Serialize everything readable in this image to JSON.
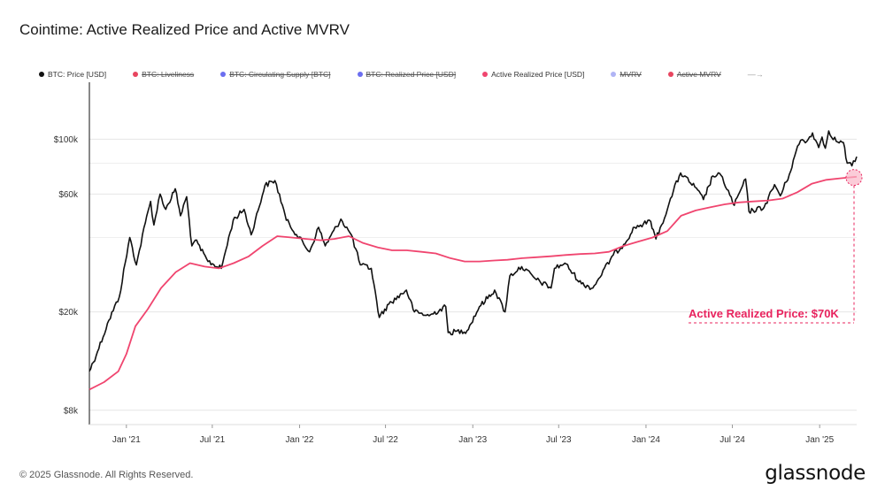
{
  "page": {
    "title": "Cointime: Active Realized Price and Active MVRV",
    "copyright": "© 2025 Glassnode. All Rights Reserved.",
    "logo_text": "glassnode"
  },
  "legend": [
    {
      "label": "BTC: Price [USD]",
      "color": "#111111",
      "enabled": true
    },
    {
      "label": "BTC: Liveliness",
      "color": "#e8455f",
      "enabled": false
    },
    {
      "label": "BTC: Circulating Supply [BTC]",
      "color": "#6b6ef0",
      "enabled": false
    },
    {
      "label": "BTC: Realized Price [USD]",
      "color": "#6b6ef0",
      "enabled": false
    },
    {
      "label": "Active Realized Price [USD]",
      "color": "#f0456f",
      "enabled": true
    },
    {
      "label": "MVRV",
      "color": "#b0b4f5",
      "enabled": false
    },
    {
      "label": "Active MVRV",
      "color": "#e8455f",
      "enabled": false
    }
  ],
  "legend_more": "—→",
  "chart_data": {
    "type": "line",
    "yscale": "log",
    "ylim": [
      7000,
      170000
    ],
    "xlim": [
      "2020-10-15",
      "2025-03-20"
    ],
    "y_ticks": [
      {
        "value": 8000,
        "label": "$8k"
      },
      {
        "value": 20000,
        "label": "$20k"
      },
      {
        "value": 60000,
        "label": "$60k"
      },
      {
        "value": 100000,
        "label": "$100k"
      }
    ],
    "x_ticks": [
      {
        "date": "2021-01-01",
        "label": "Jan '21"
      },
      {
        "date": "2021-07-01",
        "label": "Jul '21"
      },
      {
        "date": "2022-01-01",
        "label": "Jan '22"
      },
      {
        "date": "2022-07-01",
        "label": "Jul '22"
      },
      {
        "date": "2023-01-01",
        "label": "Jan '23"
      },
      {
        "date": "2023-07-01",
        "label": "Jul '23"
      },
      {
        "date": "2024-01-01",
        "label": "Jan '24"
      },
      {
        "date": "2024-07-01",
        "label": "Jul '24"
      },
      {
        "date": "2025-01-01",
        "label": "Jan '25"
      }
    ],
    "grid": "horizontal",
    "series": [
      {
        "name": "BTC: Price [USD]",
        "color": "#111111",
        "points": [
          [
            "2020-10-15",
            11500
          ],
          [
            "2020-11-01",
            13800
          ],
          [
            "2020-11-25",
            18500
          ],
          [
            "2020-12-17",
            23000
          ],
          [
            "2021-01-08",
            40000
          ],
          [
            "2021-01-22",
            31000
          ],
          [
            "2021-02-10",
            46000
          ],
          [
            "2021-02-21",
            56000
          ],
          [
            "2021-02-28",
            45000
          ],
          [
            "2021-03-13",
            60000
          ],
          [
            "2021-03-25",
            52000
          ],
          [
            "2021-04-14",
            63000
          ],
          [
            "2021-04-25",
            49000
          ],
          [
            "2021-05-08",
            58500
          ],
          [
            "2021-05-19",
            37000
          ],
          [
            "2021-05-26",
            39000
          ],
          [
            "2021-06-22",
            32000
          ],
          [
            "2021-07-20",
            30000
          ],
          [
            "2021-08-14",
            47000
          ],
          [
            "2021-09-06",
            52000
          ],
          [
            "2021-09-21",
            41000
          ],
          [
            "2021-10-20",
            65000
          ],
          [
            "2021-11-10",
            68000
          ],
          [
            "2021-11-26",
            54000
          ],
          [
            "2021-12-04",
            47000
          ],
          [
            "2022-01-22",
            35000
          ],
          [
            "2022-02-10",
            44000
          ],
          [
            "2022-02-24",
            37000
          ],
          [
            "2022-03-29",
            47500
          ],
          [
            "2022-04-20",
            41000
          ],
          [
            "2022-05-09",
            31000
          ],
          [
            "2022-06-01",
            30000
          ],
          [
            "2022-06-18",
            19000
          ],
          [
            "2022-07-08",
            21500
          ],
          [
            "2022-08-14",
            24500
          ],
          [
            "2022-08-31",
            20000
          ],
          [
            "2022-10-01",
            19300
          ],
          [
            "2022-11-05",
            21000
          ],
          [
            "2022-11-10",
            16500
          ],
          [
            "2022-12-20",
            16800
          ],
          [
            "2023-01-15",
            21000
          ],
          [
            "2023-02-16",
            24500
          ],
          [
            "2023-03-10",
            20000
          ],
          [
            "2023-03-20",
            28000
          ],
          [
            "2023-04-14",
            30500
          ],
          [
            "2023-05-15",
            27000
          ],
          [
            "2023-06-15",
            25000
          ],
          [
            "2023-06-22",
            30000
          ],
          [
            "2023-07-14",
            31500
          ],
          [
            "2023-08-18",
            26000
          ],
          [
            "2023-09-11",
            25000
          ],
          [
            "2023-10-24",
            34000
          ],
          [
            "2023-11-15",
            37500
          ],
          [
            "2023-12-08",
            44000
          ],
          [
            "2024-01-11",
            46500
          ],
          [
            "2024-01-22",
            39500
          ],
          [
            "2024-02-15",
            52000
          ],
          [
            "2024-02-28",
            62000
          ],
          [
            "2024-03-14",
            73000
          ],
          [
            "2024-04-13",
            64000
          ],
          [
            "2024-05-01",
            57000
          ],
          [
            "2024-05-21",
            71000
          ],
          [
            "2024-06-07",
            71500
          ],
          [
            "2024-07-05",
            54000
          ],
          [
            "2024-07-29",
            69000
          ],
          [
            "2024-08-05",
            51000
          ],
          [
            "2024-09-06",
            53000
          ],
          [
            "2024-09-28",
            65500
          ],
          [
            "2024-10-10",
            59000
          ],
          [
            "2024-10-29",
            72000
          ],
          [
            "2024-11-12",
            89000
          ],
          [
            "2024-11-22",
            99000
          ],
          [
            "2024-12-05",
            98000
          ],
          [
            "2024-12-17",
            106000
          ],
          [
            "2024-12-30",
            92500
          ],
          [
            "2025-01-06",
            102000
          ],
          [
            "2025-01-13",
            92000
          ],
          [
            "2025-01-20",
            108000
          ],
          [
            "2025-02-05",
            98000
          ],
          [
            "2025-02-20",
            97000
          ],
          [
            "2025-02-28",
            80000
          ],
          [
            "2025-03-10",
            78000
          ],
          [
            "2025-03-20",
            85000
          ]
        ]
      },
      {
        "name": "Active Realized Price [USD]",
        "color": "#f0456f",
        "points": [
          [
            "2020-10-15",
            9700
          ],
          [
            "2020-11-15",
            10400
          ],
          [
            "2020-12-15",
            11500
          ],
          [
            "2021-01-01",
            13500
          ],
          [
            "2021-01-20",
            17500
          ],
          [
            "2021-02-15",
            20500
          ],
          [
            "2021-03-15",
            25000
          ],
          [
            "2021-04-15",
            29000
          ],
          [
            "2021-05-15",
            31500
          ],
          [
            "2021-06-15",
            30500
          ],
          [
            "2021-07-15",
            30000
          ],
          [
            "2021-08-15",
            31500
          ],
          [
            "2021-09-15",
            33500
          ],
          [
            "2021-10-15",
            37000
          ],
          [
            "2021-11-15",
            40500
          ],
          [
            "2021-12-15",
            40000
          ],
          [
            "2022-01-15",
            39500
          ],
          [
            "2022-02-15",
            39000
          ],
          [
            "2022-03-15",
            39500
          ],
          [
            "2022-04-15",
            40500
          ],
          [
            "2022-05-15",
            38000
          ],
          [
            "2022-06-15",
            36500
          ],
          [
            "2022-07-15",
            35500
          ],
          [
            "2022-08-15",
            35500
          ],
          [
            "2022-09-15",
            35000
          ],
          [
            "2022-10-15",
            34500
          ],
          [
            "2022-11-15",
            33000
          ],
          [
            "2022-12-15",
            32000
          ],
          [
            "2023-01-15",
            32000
          ],
          [
            "2023-02-15",
            32300
          ],
          [
            "2023-03-15",
            32500
          ],
          [
            "2023-04-15",
            33000
          ],
          [
            "2023-05-15",
            33300
          ],
          [
            "2023-06-15",
            33600
          ],
          [
            "2023-07-15",
            34000
          ],
          [
            "2023-08-15",
            34300
          ],
          [
            "2023-09-15",
            34500
          ],
          [
            "2023-10-15",
            35000
          ],
          [
            "2023-11-15",
            37000
          ],
          [
            "2023-12-15",
            38500
          ],
          [
            "2024-01-15",
            40000
          ],
          [
            "2024-02-15",
            42500
          ],
          [
            "2024-03-15",
            49000
          ],
          [
            "2024-04-15",
            51500
          ],
          [
            "2024-05-15",
            53000
          ],
          [
            "2024-06-15",
            54500
          ],
          [
            "2024-07-15",
            55500
          ],
          [
            "2024-08-15",
            56000
          ],
          [
            "2024-09-15",
            56500
          ],
          [
            "2024-10-15",
            57500
          ],
          [
            "2024-11-15",
            61000
          ],
          [
            "2024-12-15",
            66000
          ],
          [
            "2025-01-15",
            68500
          ],
          [
            "2025-02-15",
            69500
          ],
          [
            "2025-03-20",
            70500
          ]
        ]
      }
    ],
    "annotations": [
      {
        "text": "Active Realized Price: $70K",
        "date": "2025-03-20",
        "value": 70000,
        "color": "#e8235e"
      }
    ]
  }
}
